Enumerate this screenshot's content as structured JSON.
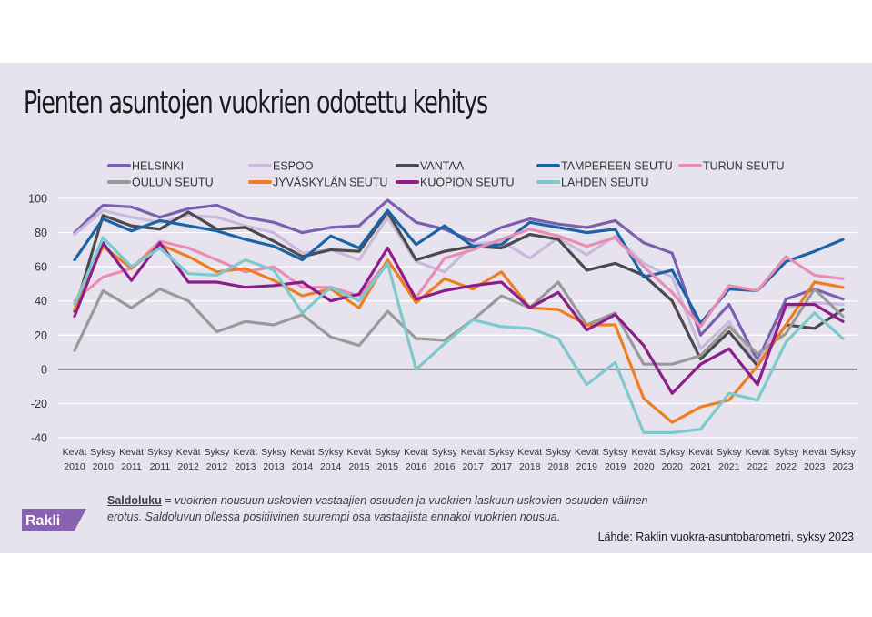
{
  "title": "Pienten asuntojen vuokrien odotettu kehitys",
  "note": {
    "term": "Saldoluku",
    "text": " = vuokrien nousuun uskovien vastaajien osuuden ja vuokrien laskuun uskovien osuuden välinen erotus. Saldoluvun ollessa positiivinen suurempi osa vastaajista ennakoi vuokrien nousua."
  },
  "source": "Lähde: Raklin vuokra-asuntobarometri, syksy 2023",
  "logo": {
    "text": "Rakli",
    "color": "#8a62b3"
  },
  "chart_data": {
    "type": "line",
    "ylim": [
      -40,
      100
    ],
    "yticks": [
      -40,
      -20,
      0,
      20,
      40,
      60,
      80,
      100
    ],
    "grid": true,
    "legend_position": "top",
    "categories": [
      [
        "Kevät",
        "2010"
      ],
      [
        "Syksy",
        "2010"
      ],
      [
        "Kevät",
        "2011"
      ],
      [
        "Syksy",
        "2011"
      ],
      [
        "Kevät",
        "2012"
      ],
      [
        "Syksy",
        "2012"
      ],
      [
        "Kevät",
        "2013"
      ],
      [
        "Syksy",
        "2013"
      ],
      [
        "Kevät",
        "2014"
      ],
      [
        "Syksy",
        "2014"
      ],
      [
        "Kevät",
        "2015"
      ],
      [
        "Syksy",
        "2015"
      ],
      [
        "Kevät",
        "2016"
      ],
      [
        "Syksy",
        "2016"
      ],
      [
        "Kevät",
        "2017"
      ],
      [
        "Syksy",
        "2017"
      ],
      [
        "Kevät",
        "2018"
      ],
      [
        "Syksy",
        "2018"
      ],
      [
        "Kevät",
        "2019"
      ],
      [
        "Syksy",
        "2019"
      ],
      [
        "Kevät",
        "2020"
      ],
      [
        "Syksy",
        "2020"
      ],
      [
        "Kevät",
        "2021"
      ],
      [
        "Syksy",
        "2021"
      ],
      [
        "Kevät",
        "2022"
      ],
      [
        "Syksy",
        "2022"
      ],
      [
        "Kevät",
        "2023"
      ],
      [
        "Syksy",
        "2023"
      ]
    ],
    "series": [
      {
        "name": "HELSINKI",
        "color": "#7b5fb0",
        "values": [
          80,
          96,
          95,
          89,
          94,
          96,
          89,
          86,
          80,
          83,
          84,
          99,
          86,
          82,
          75,
          83,
          88,
          85,
          83,
          87,
          74,
          68,
          20,
          38,
          5,
          41,
          47,
          41
        ]
      },
      {
        "name": "ESPOO",
        "color": "#cbb9dd",
        "values": [
          79,
          93,
          89,
          86,
          90,
          89,
          84,
          80,
          68,
          70,
          64,
          89,
          63,
          57,
          73,
          75,
          65,
          77,
          67,
          78,
          62,
          54,
          12,
          28,
          3,
          36,
          39,
          38
        ]
      },
      {
        "name": "VANTAA",
        "color": "#4a4a4f",
        "values": [
          34,
          90,
          84,
          82,
          92,
          82,
          83,
          75,
          66,
          70,
          69,
          92,
          64,
          69,
          72,
          71,
          79,
          76,
          58,
          62,
          55,
          40,
          6,
          22,
          2,
          26,
          24,
          35
        ]
      },
      {
        "name": "TAMPEREEN SEUTU",
        "color": "#1a64a6",
        "values": [
          64,
          88,
          81,
          87,
          84,
          81,
          76,
          72,
          64,
          78,
          71,
          93,
          73,
          84,
          72,
          73,
          86,
          83,
          80,
          82,
          54,
          58,
          27,
          47,
          46,
          63,
          69,
          76
        ]
      },
      {
        "name": "TURUN SEUTU",
        "color": "#ea8db4",
        "values": [
          40,
          54,
          59,
          75,
          71,
          64,
          57,
          60,
          48,
          48,
          43,
          63,
          42,
          65,
          70,
          76,
          82,
          78,
          72,
          77,
          60,
          45,
          25,
          49,
          46,
          66,
          55,
          53
        ]
      },
      {
        "name": "OULUN SEUTU",
        "color": "#999999",
        "values": [
          11,
          46,
          36,
          47,
          40,
          22,
          28,
          26,
          32,
          19,
          14,
          34,
          18,
          17,
          29,
          43,
          36,
          51,
          26,
          33,
          3,
          3,
          8,
          25,
          9,
          21,
          47,
          31
        ]
      },
      {
        "name": "JYVÄSKYLÄN SEUTU",
        "color": "#ef7e22",
        "values": [
          35,
          72,
          59,
          73,
          66,
          57,
          59,
          52,
          43,
          47,
          36,
          64,
          39,
          53,
          47,
          57,
          36,
          35,
          26,
          26,
          -17,
          -31,
          -22,
          -18,
          2,
          26,
          51,
          48
        ]
      },
      {
        "name": "KUOPION SEUTU",
        "color": "#8b1e8b",
        "values": [
          31,
          74,
          52,
          74,
          51,
          51,
          48,
          49,
          51,
          40,
          44,
          71,
          41,
          46,
          49,
          51,
          36,
          45,
          23,
          32,
          14,
          -14,
          3,
          12,
          -9,
          38,
          38,
          28
        ]
      },
      {
        "name": "LAHDEN SEUTU",
        "color": "#7dc9cc",
        "values": [
          38,
          77,
          60,
          71,
          56,
          55,
          64,
          58,
          33,
          48,
          40,
          62,
          0,
          15,
          29,
          25,
          24,
          18,
          -9,
          4,
          -37,
          -37,
          -35,
          -14,
          -18,
          16,
          33,
          18
        ]
      }
    ]
  }
}
